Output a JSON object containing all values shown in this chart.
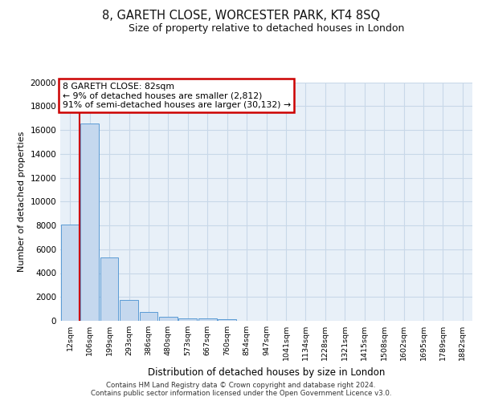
{
  "title": "8, GARETH CLOSE, WORCESTER PARK, KT4 8SQ",
  "subtitle": "Size of property relative to detached houses in London",
  "xlabel": "Distribution of detached houses by size in London",
  "ylabel": "Number of detached properties",
  "footer_line1": "Contains HM Land Registry data © Crown copyright and database right 2024.",
  "footer_line2": "Contains public sector information licensed under the Open Government Licence v3.0.",
  "bar_color": "#c5d8ee",
  "bar_edge_color": "#5b9bd5",
  "grid_color": "#c8d8e8",
  "annotation_text": "8 GARETH CLOSE: 82sqm\n← 9% of detached houses are smaller (2,812)\n91% of semi-detached houses are larger (30,132) →",
  "annotation_box_color": "#ffffff",
  "annotation_box_edge_color": "#cc0000",
  "vline_color": "#cc0000",
  "categories": [
    "12sqm",
    "106sqm",
    "199sqm",
    "293sqm",
    "386sqm",
    "480sqm",
    "573sqm",
    "667sqm",
    "760sqm",
    "854sqm",
    "947sqm",
    "1041sqm",
    "1134sqm",
    "1228sqm",
    "1321sqm",
    "1415sqm",
    "1508sqm",
    "1602sqm",
    "1695sqm",
    "1789sqm",
    "1882sqm"
  ],
  "values": [
    8100,
    16550,
    5300,
    1780,
    760,
    340,
    215,
    175,
    150,
    0,
    0,
    0,
    0,
    0,
    0,
    0,
    0,
    0,
    0,
    0,
    0
  ],
  "ylim": [
    0,
    20000
  ],
  "yticks": [
    0,
    2000,
    4000,
    6000,
    8000,
    10000,
    12000,
    14000,
    16000,
    18000,
    20000
  ],
  "background_color": "#e8f0f8",
  "vline_x": 0.5
}
